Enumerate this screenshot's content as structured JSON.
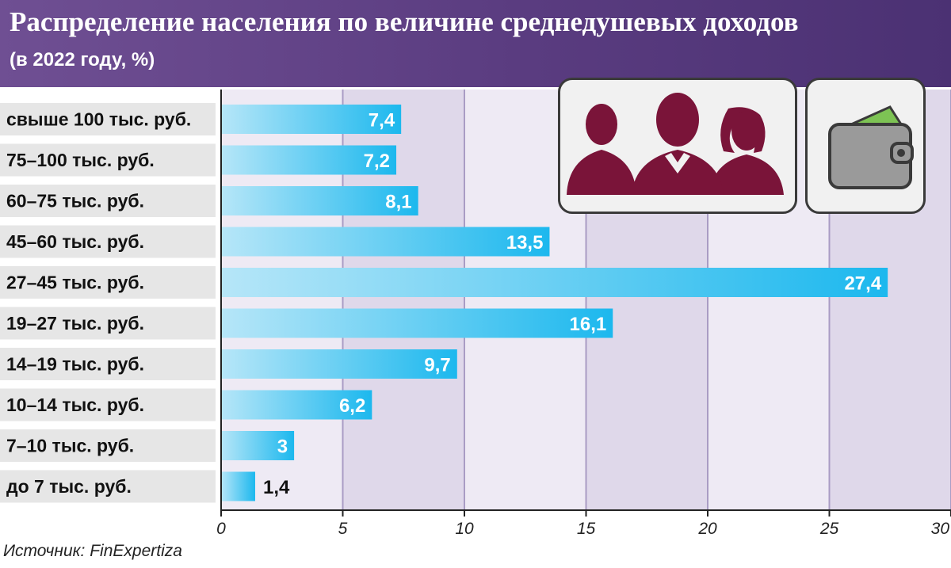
{
  "header": {
    "title": "Распределение населения по величине среднедушевых доходов",
    "subtitle": "(в 2022 году, %)"
  },
  "source": "Источник: FinExpertiza",
  "icons": [
    "people-group-icon",
    "wallet-icon"
  ],
  "colors": {
    "header_bg": "#5e4185",
    "bar_light": "#b6e6f8",
    "bar_dark": "#1cb8ee",
    "people_icon": "#7a1439",
    "wallet_body": "#9a9a9a",
    "banknote": "#7dc354"
  },
  "chart_data": {
    "type": "bar",
    "orientation": "horizontal",
    "title": "Распределение населения по величине среднедушевых доходов",
    "subtitle": "(в 2022 году, %)",
    "categories": [
      "свыше 100 тыс. руб.",
      "75–100 тыс. руб.",
      "60–75 тыс. руб.",
      "45–60 тыс. руб.",
      "27–45 тыс. руб.",
      "19–27 тыс. руб.",
      "14–19 тыс. руб.",
      "10–14 тыс. руб.",
      "7–10 тыс. руб.",
      "до 7 тыс. руб."
    ],
    "values": [
      7.4,
      7.2,
      8.1,
      13.5,
      27.4,
      16.1,
      9.7,
      6.2,
      3,
      1.4
    ],
    "value_labels": [
      "7,4",
      "7,2",
      "8,1",
      "13,5",
      "27,4",
      "16,1",
      "9,7",
      "6,2",
      "3",
      "1,4"
    ],
    "xlim": [
      0,
      30
    ],
    "ticks": [
      0,
      5,
      10,
      15,
      20,
      25,
      30
    ],
    "grid": true,
    "legend": "none"
  }
}
